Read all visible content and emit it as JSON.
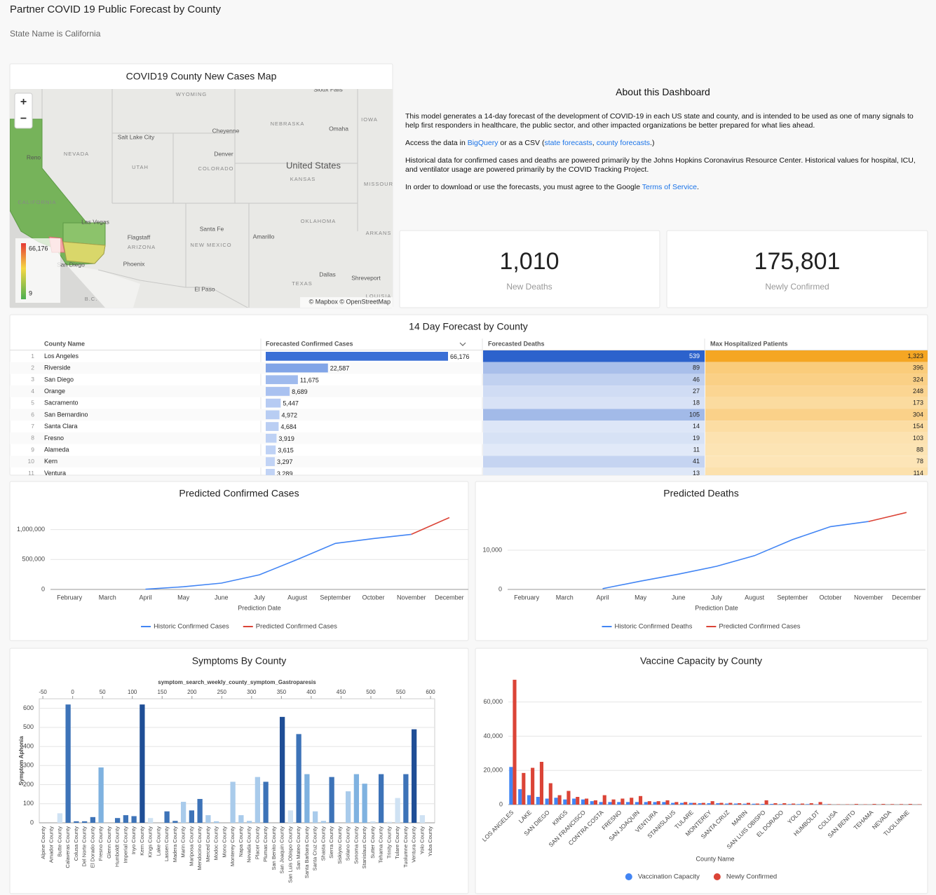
{
  "header": {
    "title": "Partner COVID 19 Public Forecast by County",
    "filter": "State Name is California"
  },
  "map": {
    "title": "COVID19 County New Cases Map",
    "zoom_in": "+",
    "zoom_out": "−",
    "legend_max": "66,176",
    "legend_min": "9",
    "attribution": "© Mapbox © OpenStreetMap",
    "places": [
      "Sioux Falls",
      "WYOMING",
      "IOWA",
      "NEBRASKA",
      "Omaha",
      "Cheyenne",
      "Salt Lake City",
      "NEVADA",
      "Denver",
      "Reno",
      "UTAH",
      "COLORADO",
      "United States",
      "KANSAS",
      "MISSOUR",
      "CALIFORNIA",
      "Las Vegas",
      "OKLAHOMA",
      "Santa Fe",
      "ARKANS",
      "Amarillo",
      "Flagstaff",
      "ARIZONA",
      "NEW MEXICO",
      "Phoenix",
      "San Diego",
      "Dallas",
      "Shreveport",
      "TEXAS",
      "El Paso",
      "B.C.",
      "LOUISIA"
    ]
  },
  "about": {
    "title": "About this Dashboard",
    "p1": "This model generates a 14-day forecast of the development of COVID-19 in each US state and county, and is intended to be used as one of many signals to help first responders in healthcare, the public sector, and other impacted organizations be better prepared for what lies ahead.",
    "p2": {
      "before": "Access the data in ",
      "link1": "BigQuery",
      "mid1": " or as a CSV (",
      "link2": "state forecasts",
      "mid2": ", ",
      "link3": "county forecasts",
      "after": ".)"
    },
    "p3": "Historical data for confirmed cases and deaths are powered primarily by the Johns Hopkins Coronavirus Resource Center. Historical values for hospital, ICU, and ventilator usage are powered primarily by the COVID Tracking Project.",
    "p4": {
      "before": "In order to download or use the forecasts, you must agree to the Google ",
      "link": "Terms of Service",
      "after": "."
    }
  },
  "scorecards": [
    {
      "value": "1,010",
      "label": "New Deaths"
    },
    {
      "value": "175,801",
      "label": "Newly Confirmed"
    }
  ],
  "table": {
    "title": "14 Day Forecast by County",
    "columns": [
      "County Name",
      "Forecasted Confirmed Cases",
      "Forecasted Deaths",
      "Max Hospitalized Patients"
    ],
    "rows": [
      [
        1,
        "Los Angeles",
        {
          "value": 66176,
          "label": "66,176"
        },
        539,
        {
          "value": 1323,
          "label": "1,323"
        }
      ],
      [
        2,
        "Riverside",
        {
          "value": 22587,
          "label": "22,587"
        },
        89,
        396
      ],
      [
        3,
        "San Diego",
        {
          "value": 11675,
          "label": "11,675"
        },
        46,
        324
      ],
      [
        4,
        "Orange",
        {
          "value": 8689,
          "label": "8,689"
        },
        27,
        248
      ],
      [
        5,
        "Sacramento",
        {
          "value": 5447,
          "label": "5,447"
        },
        18,
        173
      ],
      [
        6,
        "San Bernardino",
        {
          "value": 4972,
          "label": "4,972"
        },
        105,
        304
      ],
      [
        7,
        "Santa Clara",
        {
          "value": 4684,
          "label": "4,684"
        },
        14,
        154
      ],
      [
        8,
        "Fresno",
        {
          "value": 3919,
          "label": "3,919"
        },
        19,
        103
      ],
      [
        9,
        "Alameda",
        {
          "value": 3615,
          "label": "3,615"
        },
        11,
        88
      ],
      [
        10,
        "Kern",
        {
          "value": 3297,
          "label": "3,297"
        },
        41,
        78
      ],
      [
        11,
        "Ventura",
        {
          "value": 3289,
          "label": "3,289"
        },
        13,
        114
      ]
    ]
  },
  "chart_data": [
    {
      "type": "line",
      "title": "Predicted Confirmed Cases",
      "x_label": "Prediction Date",
      "categories": [
        "February",
        "March",
        "April",
        "May",
        "June",
        "July",
        "August",
        "September",
        "October",
        "November",
        "December"
      ],
      "series": [
        {
          "name": "Historic Confirmed Cases",
          "color": "#4285f4",
          "values": [
            null,
            null,
            3000,
            45000,
            105000,
            245000,
            500000,
            770000,
            850000,
            920000,
            null
          ]
        },
        {
          "name": "Predicted Confirmed Cases",
          "color": "#db4437",
          "values": [
            null,
            null,
            null,
            null,
            null,
            null,
            null,
            null,
            null,
            920000,
            1200000
          ]
        }
      ],
      "ylim": [
        0,
        1300000
      ],
      "yticks": [
        0,
        {
          "value": 500000,
          "label": "500,000"
        },
        {
          "value": 1000000,
          "label": "1,000,000"
        }
      ],
      "grid": true
    },
    {
      "type": "line",
      "title": "Predicted Deaths",
      "x_label": "Prediction Date",
      "categories": [
        "February",
        "March",
        "April",
        "May",
        "June",
        "July",
        "August",
        "September",
        "October",
        "November",
        "December"
      ],
      "series": [
        {
          "name": "Historic Confirmed Deaths",
          "color": "#4285f4",
          "values": [
            null,
            null,
            200,
            2100,
            3900,
            5900,
            8600,
            12700,
            16000,
            17300,
            null
          ]
        },
        {
          "name": "Predicted Confirmed Cases",
          "color": "#db4437",
          "values": [
            null,
            null,
            null,
            null,
            null,
            null,
            null,
            null,
            null,
            17300,
            19600
          ]
        }
      ],
      "ylim": [
        0,
        20000
      ],
      "yticks": [
        0,
        {
          "value": 10000,
          "label": "10,000"
        }
      ],
      "grid": true
    },
    {
      "type": "bar",
      "title": "Symptoms By County",
      "subtitle": "symptom_search_weekly_county_symptom_Gastroparesis",
      "y_label": "Symptom Aphonia",
      "categories": [
        "Alpine County",
        "Amador County",
        "Butte County",
        "Calaveras County",
        "Colusa County",
        "Del Norte County",
        "El Dorado County",
        "Fresno County",
        "Glenn County",
        "Humboldt County",
        "Imperial County",
        "Inyo County",
        "Kern County",
        "Kings County",
        "Lake County",
        "Lassen County",
        "Madera County",
        "Marin County",
        "Mariposa County",
        "Mendocino County",
        "Merced County",
        "Modoc County",
        "Mono County",
        "Monterey County",
        "Napa County",
        "Nevada County",
        "Placer County",
        "Plumas County",
        "San Benito County",
        "San Joaquin County",
        "San Luis Obispo County",
        "San Mateo County",
        "Santa Barbara County",
        "Santa Cruz County",
        "Shasta County",
        "Sierra County",
        "Siskiyou County",
        "Solano County",
        "Sonoma County",
        "Stanislaus County",
        "Sutter County",
        "Tehama County",
        "Trinity County",
        "Tulare County",
        "Tuolumne County",
        "Ventura County",
        "Yolo County",
        "Yuba County"
      ],
      "values": [
        0,
        0,
        50,
        620,
        8,
        8,
        30,
        290,
        0,
        25,
        40,
        35,
        620,
        25,
        0,
        60,
        10,
        110,
        65,
        125,
        40,
        8,
        0,
        215,
        40,
        10,
        240,
        215,
        0,
        555,
        65,
        465,
        255,
        60,
        10,
        240,
        0,
        165,
        255,
        205,
        8,
        255,
        5,
        130,
        255,
        490,
        40,
        0
      ],
      "colors": [
        "#4a86c8",
        "#4a86c8",
        "#cfe2f3",
        "#3d73b8",
        "#3d73b8",
        "#3d73b8",
        "#3d73b8",
        "#7fb2e0",
        "#3d73b8",
        "#3d73b8",
        "#3d73b8",
        "#3d73b8",
        "#1f4e96",
        "#cfe2f3",
        "#3d73b8",
        "#3d73b8",
        "#3d73b8",
        "#a9cbeb",
        "#3d73b8",
        "#3d73b8",
        "#a9cbeb",
        "#a9cbeb",
        "#a9cbeb",
        "#a9cbeb",
        "#a9cbeb",
        "#a9cbeb",
        "#a9cbeb",
        "#3d73b8",
        "#3d73b8",
        "#1f4e96",
        "#cfe2f3",
        "#3d73b8",
        "#7fb2e0",
        "#a9cbeb",
        "#a9cbeb",
        "#3d73b8",
        "#a9cbeb",
        "#a9cbeb",
        "#7fb2e0",
        "#7fb2e0",
        "#cfe2f3",
        "#3d73b8",
        "#cfe2f3",
        "#cfe2f3",
        "#3d73b8",
        "#1f4e96",
        "#cfe2f3",
        "#cfe2f3"
      ],
      "ylim": [
        0,
        650
      ],
      "yticks": [
        0,
        100,
        200,
        300,
        400,
        500,
        600
      ],
      "xlim": [
        -56,
        607
      ],
      "xticks": [
        -50,
        0,
        50,
        100,
        150,
        200,
        250,
        300,
        350,
        400,
        450,
        500,
        550,
        600
      ],
      "grid": true
    },
    {
      "type": "bar",
      "title": "Vaccine Capacity by County",
      "x_label": "County Name",
      "categories": [
        "LOS ANGELES",
        null,
        "LAKE",
        null,
        "SAN DIEGO",
        null,
        "KINGS",
        null,
        "SAN FRANCISCO",
        null,
        "CONTRA COSTA",
        null,
        "FRESNO",
        null,
        "SAN JOAQUIN",
        null,
        "VENTURA",
        null,
        "STANISLAUS",
        null,
        "TULARE",
        null,
        "MONTEREY",
        null,
        "SANTA CRUZ",
        null,
        "MARIN",
        null,
        "SAN LUIS OBISPO",
        null,
        "EL DORADO",
        null,
        "YOLO",
        null,
        "HUMBOLDT",
        null,
        "COLUSA",
        null,
        "SAN BENITO",
        null,
        "TEHAMA",
        null,
        "NEVADA",
        null,
        "TUOLUMNE",
        null
      ],
      "series": [
        {
          "name": "Vaccination Capacity",
          "color": "#4285f4",
          "values": [
            22000,
            9000,
            5500,
            4500,
            3500,
            4000,
            3000,
            3500,
            3000,
            2000,
            1500,
            1500,
            1500,
            1500,
            1500,
            1500,
            1500,
            1500,
            1000,
            1000,
            1000,
            800,
            800,
            800,
            600,
            600,
            500,
            500,
            400,
            400,
            300,
            300,
            300,
            300,
            200,
            200,
            0,
            0,
            0,
            0,
            0,
            0,
            0,
            0,
            0,
            0
          ]
        },
        {
          "name": "Newly Confirmed",
          "color": "#db4437",
          "values": [
            73000,
            18500,
            21500,
            25000,
            12500,
            5500,
            8000,
            4500,
            3500,
            2500,
            5500,
            3000,
            3500,
            4000,
            5000,
            2000,
            2000,
            2500,
            1500,
            1500,
            1000,
            1000,
            2000,
            1000,
            1000,
            800,
            1000,
            600,
            2500,
            800,
            800,
            600,
            600,
            800,
            1500,
            300,
            200,
            200,
            400,
            200,
            400,
            400,
            300,
            300,
            400,
            200
          ]
        }
      ],
      "ylim": [
        0,
        75000
      ],
      "yticks": [
        0,
        {
          "value": 20000,
          "label": "20,000"
        },
        {
          "value": 40000,
          "label": "40,000"
        },
        {
          "value": 60000,
          "label": "60,000"
        }
      ],
      "grid": true,
      "legend": "bottom"
    }
  ]
}
